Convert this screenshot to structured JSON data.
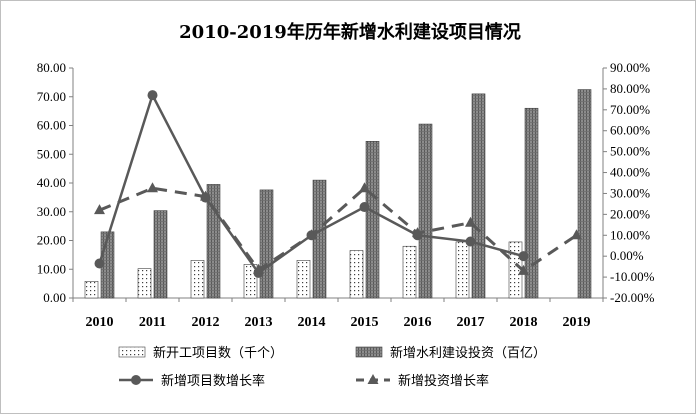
{
  "chart_data": {
    "type": "bar",
    "title": "2010-2019年历年新增水利建设项目情况",
    "categories": [
      "2010",
      "2011",
      "2012",
      "2013",
      "2014",
      "2015",
      "2016",
      "2017",
      "2018",
      "2019"
    ],
    "y_left": {
      "ylim": [
        0,
        80
      ],
      "ticks": [
        "0.00",
        "10.00",
        "20.00",
        "30.00",
        "40.00",
        "50.00",
        "60.00",
        "70.00",
        "80.00"
      ]
    },
    "y_right": {
      "ylim": [
        -20,
        90
      ],
      "ticks": [
        "-20.00%",
        "-10.00%",
        "0.00%",
        "10.00%",
        "20.00%",
        "30.00%",
        "40.00%",
        "50.00%",
        "60.00%",
        "70.00%",
        "80.00%",
        "90.00%"
      ]
    },
    "series": [
      {
        "name": "新开工项目数（千个）",
        "kind": "bar",
        "axis": "left",
        "pattern": "dots",
        "values": [
          5.8,
          10.2,
          13.1,
          11.7,
          13.1,
          16.5,
          18.0,
          19.5,
          19.5,
          null
        ]
      },
      {
        "name": "新增水利建设投资（百亿）",
        "kind": "bar",
        "axis": "left",
        "pattern": "hatch",
        "values": [
          23.0,
          30.4,
          39.5,
          37.6,
          41.0,
          54.5,
          60.5,
          71.0,
          66.0,
          72.5
        ]
      },
      {
        "name": "新增项目数增长率",
        "kind": "line",
        "axis": "right",
        "style": "solid",
        "marker": "circle",
        "values": [
          -3.5,
          77.0,
          28.0,
          -8.0,
          10.0,
          23.5,
          10.0,
          7.0,
          0.0,
          null
        ]
      },
      {
        "name": "新增投资增长率",
        "kind": "line",
        "axis": "right",
        "style": "dashed",
        "marker": "triangle",
        "values": [
          22.0,
          32.5,
          28.5,
          -6.5,
          10.0,
          32.5,
          11.0,
          16.0,
          -7.0,
          10.0
        ]
      }
    ],
    "legend_position": "bottom",
    "grid": false,
    "colors": {
      "bar_dots": "#ffffff",
      "bar_hatch": "#7f7f7f",
      "line": "#595959",
      "axis": "#808080"
    }
  }
}
